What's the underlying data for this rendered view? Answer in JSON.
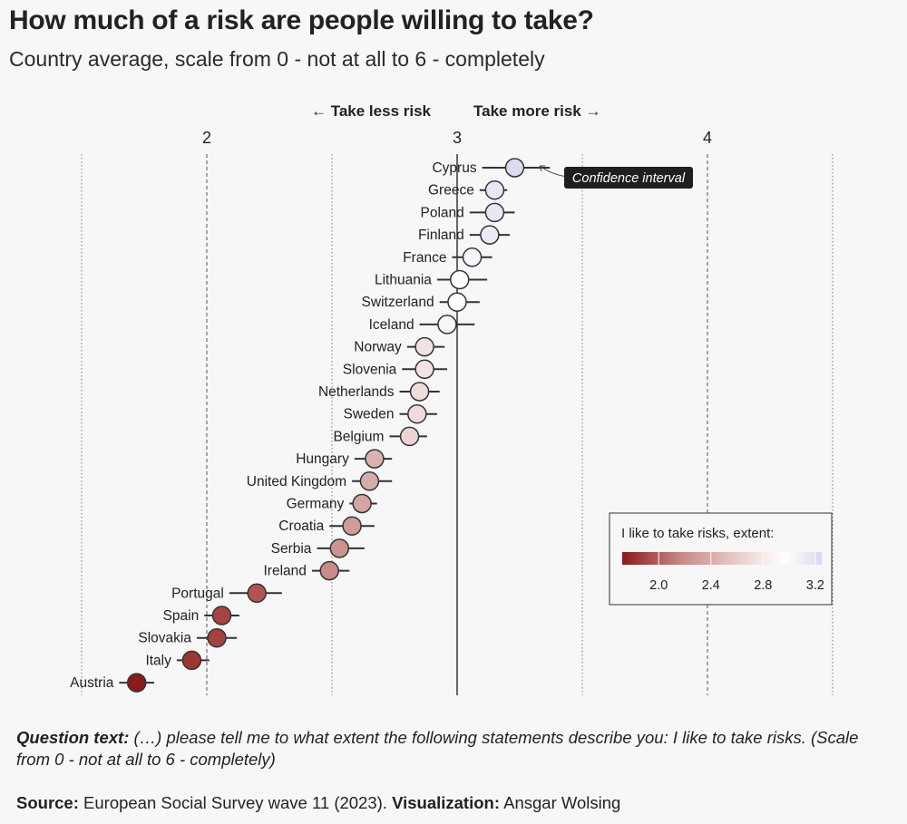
{
  "title": "How much of a risk are people willing to take?",
  "subtitle": "Country average, scale from 0 - not at all to 6 - completely",
  "direction_labels": {
    "less": "← Take less risk",
    "more": "Take more risk →"
  },
  "annotation": "Confidence interval",
  "legend": {
    "title": "I like to take risks, extent:",
    "ticks": [
      "2.0",
      "2.4",
      "2.8",
      "3.2"
    ],
    "colors": {
      "low": "#8b1a1a",
      "mid": "#ffffff",
      "high": "#d8d8ef"
    }
  },
  "caption": {
    "label": "Question text:",
    "text": "(…) please tell me to what extent the following statements describe you: I like to take risks. (Scale from 0 - not at all to 6 - completely)"
  },
  "source": {
    "label": "Source:",
    "text": "European Social Survey wave 11 (2023).",
    "viz_label": "Visualization:",
    "viz_text": "Ansgar Wolsing"
  },
  "chart_data": {
    "type": "scatter",
    "xlim": [
      1.5,
      4.5
    ],
    "x_ticks": [
      2,
      3,
      4
    ],
    "x_tick_labels": [
      "2",
      "3",
      "4"
    ],
    "reference_line": 3,
    "grid": true,
    "legend_position": "bottom-right",
    "points": [
      {
        "country": "Cyprus",
        "mean": 3.23,
        "low": 3.1,
        "high": 3.37
      },
      {
        "country": "Greece",
        "mean": 3.15,
        "low": 3.09,
        "high": 3.2
      },
      {
        "country": "Poland",
        "mean": 3.15,
        "low": 3.05,
        "high": 3.23
      },
      {
        "country": "Finland",
        "mean": 3.13,
        "low": 3.05,
        "high": 3.21
      },
      {
        "country": "France",
        "mean": 3.06,
        "low": 2.98,
        "high": 3.14
      },
      {
        "country": "Lithuania",
        "mean": 3.01,
        "low": 2.92,
        "high": 3.12
      },
      {
        "country": "Switzerland",
        "mean": 3.0,
        "low": 2.93,
        "high": 3.09
      },
      {
        "country": "Iceland",
        "mean": 2.96,
        "low": 2.85,
        "high": 3.07
      },
      {
        "country": "Norway",
        "mean": 2.87,
        "low": 2.8,
        "high": 2.95
      },
      {
        "country": "Slovenia",
        "mean": 2.87,
        "low": 2.78,
        "high": 2.96
      },
      {
        "country": "Netherlands",
        "mean": 2.85,
        "low": 2.77,
        "high": 2.93
      },
      {
        "country": "Sweden",
        "mean": 2.84,
        "low": 2.77,
        "high": 2.92
      },
      {
        "country": "Belgium",
        "mean": 2.81,
        "low": 2.73,
        "high": 2.88
      },
      {
        "country": "Hungary",
        "mean": 2.67,
        "low": 2.59,
        "high": 2.74
      },
      {
        "country": "United Kingdom",
        "mean": 2.65,
        "low": 2.58,
        "high": 2.74
      },
      {
        "country": "Germany",
        "mean": 2.62,
        "low": 2.57,
        "high": 2.68
      },
      {
        "country": "Croatia",
        "mean": 2.58,
        "low": 2.49,
        "high": 2.67
      },
      {
        "country": "Serbia",
        "mean": 2.53,
        "low": 2.44,
        "high": 2.63
      },
      {
        "country": "Ireland",
        "mean": 2.49,
        "low": 2.42,
        "high": 2.57
      },
      {
        "country": "Portugal",
        "mean": 2.2,
        "low": 2.09,
        "high": 2.3
      },
      {
        "country": "Spain",
        "mean": 2.06,
        "low": 1.99,
        "high": 2.13
      },
      {
        "country": "Slovakia",
        "mean": 2.04,
        "low": 1.96,
        "high": 2.12
      },
      {
        "country": "Italy",
        "mean": 1.94,
        "low": 1.88,
        "high": 2.01
      },
      {
        "country": "Austria",
        "mean": 1.72,
        "low": 1.65,
        "high": 1.79
      }
    ]
  }
}
